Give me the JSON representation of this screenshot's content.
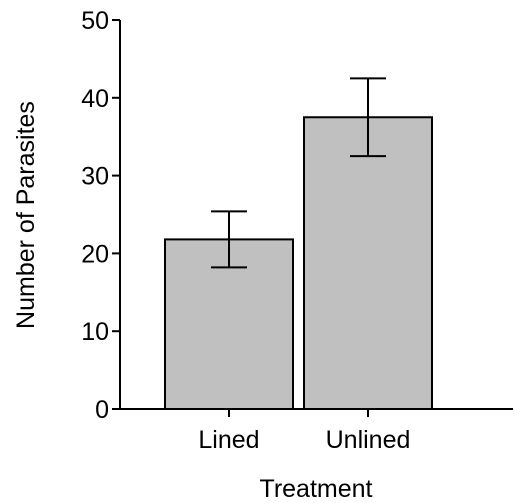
{
  "chart_data": {
    "type": "bar",
    "title": "",
    "xlabel": "Treatment",
    "ylabel": "Number of Parasites",
    "categories": [
      "Lined",
      "Unlined"
    ],
    "values": [
      21.8,
      37.5
    ],
    "error_bars": [
      {
        "low": 18.2,
        "high": 25.4
      },
      {
        "low": 32.5,
        "high": 42.5
      }
    ],
    "ylim": [
      0,
      50
    ],
    "yticks": [
      0,
      10,
      20,
      30,
      40,
      50
    ],
    "grid": false,
    "legend": "none",
    "colors": {
      "bar_fill": "#c0c0c0",
      "bar_stroke": "#000000",
      "axis": "#000000"
    }
  }
}
